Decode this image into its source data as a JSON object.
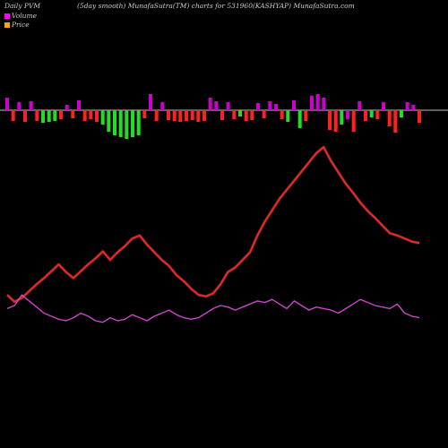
{
  "header": {
    "left": "Daily PVM",
    "center": "(5day smooth) MunafaSutra(TM) charts for 531960",
    "right": "(KASHYAP) MunafaSutra.com"
  },
  "legend": [
    {
      "label": "Volume",
      "color": "#ff00ff"
    },
    {
      "label": "Price",
      "color": "#ffa500"
    }
  ],
  "colors": {
    "background": "#000000",
    "baseline": "#ffffff",
    "price_line": "#ff2020",
    "indicator_line": "#cc44cc",
    "bar_up": "#cc00cc",
    "bar_down": "#ff2020",
    "bar_green": "#22dd22"
  },
  "chart_data": {
    "type": "line",
    "x": [
      1,
      2,
      3,
      4,
      5,
      6,
      7,
      8,
      9,
      10,
      11,
      12,
      13,
      14,
      15,
      16,
      17,
      18,
      19,
      20,
      21,
      22,
      23,
      24,
      25,
      26,
      27,
      28,
      29,
      30,
      31,
      32,
      33,
      34,
      35,
      36,
      37,
      38,
      39,
      40,
      41,
      42,
      43,
      44,
      45,
      46,
      47,
      48,
      49,
      50,
      51,
      52,
      53,
      54,
      55,
      56,
      57
    ],
    "series": [
      {
        "role": "price",
        "color": "#ff2020",
        "values": [
          54,
          45,
          50,
          59,
          68,
          76,
          85,
          94,
          84,
          76,
          85,
          94,
          102,
          111,
          100,
          110,
          118,
          128,
          132,
          120,
          110,
          100,
          92,
          80,
          72,
          62,
          54,
          52,
          56,
          68,
          84,
          90,
          100,
          110,
          132,
          150,
          165,
          180,
          192,
          204,
          216,
          228,
          240,
          248,
          230,
          215,
          200,
          188,
          175,
          164,
          155,
          145,
          135,
          132,
          128,
          124,
          122
        ]
      },
      {
        "role": "indicator",
        "color": "#cc44cc",
        "values": [
          36,
          40,
          54,
          46,
          38,
          30,
          26,
          22,
          20,
          24,
          30,
          26,
          20,
          18,
          24,
          20,
          22,
          28,
          24,
          20,
          26,
          30,
          34,
          28,
          24,
          22,
          24,
          30,
          36,
          40,
          38,
          34,
          38,
          42,
          46,
          44,
          48,
          42,
          36,
          46,
          40,
          34,
          38,
          36,
          34,
          30,
          36,
          42,
          48,
          44,
          40,
          38,
          36,
          42,
          30,
          26,
          24
        ]
      }
    ],
    "volume_bars": {
      "color_codes": [
        "up",
        "down",
        "up",
        "down",
        "up",
        "down",
        "green",
        "green",
        "green",
        "down",
        "up",
        "down",
        "up",
        "down",
        "down",
        "down",
        "green",
        "green",
        "green",
        "green",
        "green",
        "green",
        "green",
        "down",
        "up",
        "down",
        "up",
        "down",
        "down",
        "down",
        "down",
        "down",
        "down",
        "down",
        "up",
        "up",
        "down",
        "up",
        "down",
        "green",
        "down",
        "down",
        "up",
        "down",
        "up",
        "up",
        "down",
        "green",
        "up",
        "green",
        "down",
        "up",
        "up",
        "up",
        "down",
        "down",
        "green",
        "up",
        "down",
        "up",
        "down",
        "green",
        "down",
        "up",
        "down",
        "down",
        "green",
        "up",
        "up",
        "down"
      ],
      "values": [
        14,
        -12,
        9,
        -13,
        10,
        -12,
        -14,
        -13,
        -12,
        -10,
        6,
        -9,
        11,
        -12,
        -10,
        -13,
        -16,
        -24,
        -28,
        -30,
        -32,
        -30,
        -28,
        -9,
        18,
        -12,
        9,
        -11,
        -12,
        -13,
        -12,
        -11,
        -13,
        -12,
        14,
        10,
        -11,
        9,
        -10,
        -7,
        -12,
        -11,
        8,
        -9,
        10,
        7,
        -10,
        -13,
        11,
        -20,
        -12,
        16,
        18,
        14,
        -22,
        -24,
        -16,
        -10,
        -24,
        10,
        -12,
        -8,
        -10,
        9,
        -18,
        -25,
        -8,
        9,
        6,
        -14
      ]
    }
  }
}
